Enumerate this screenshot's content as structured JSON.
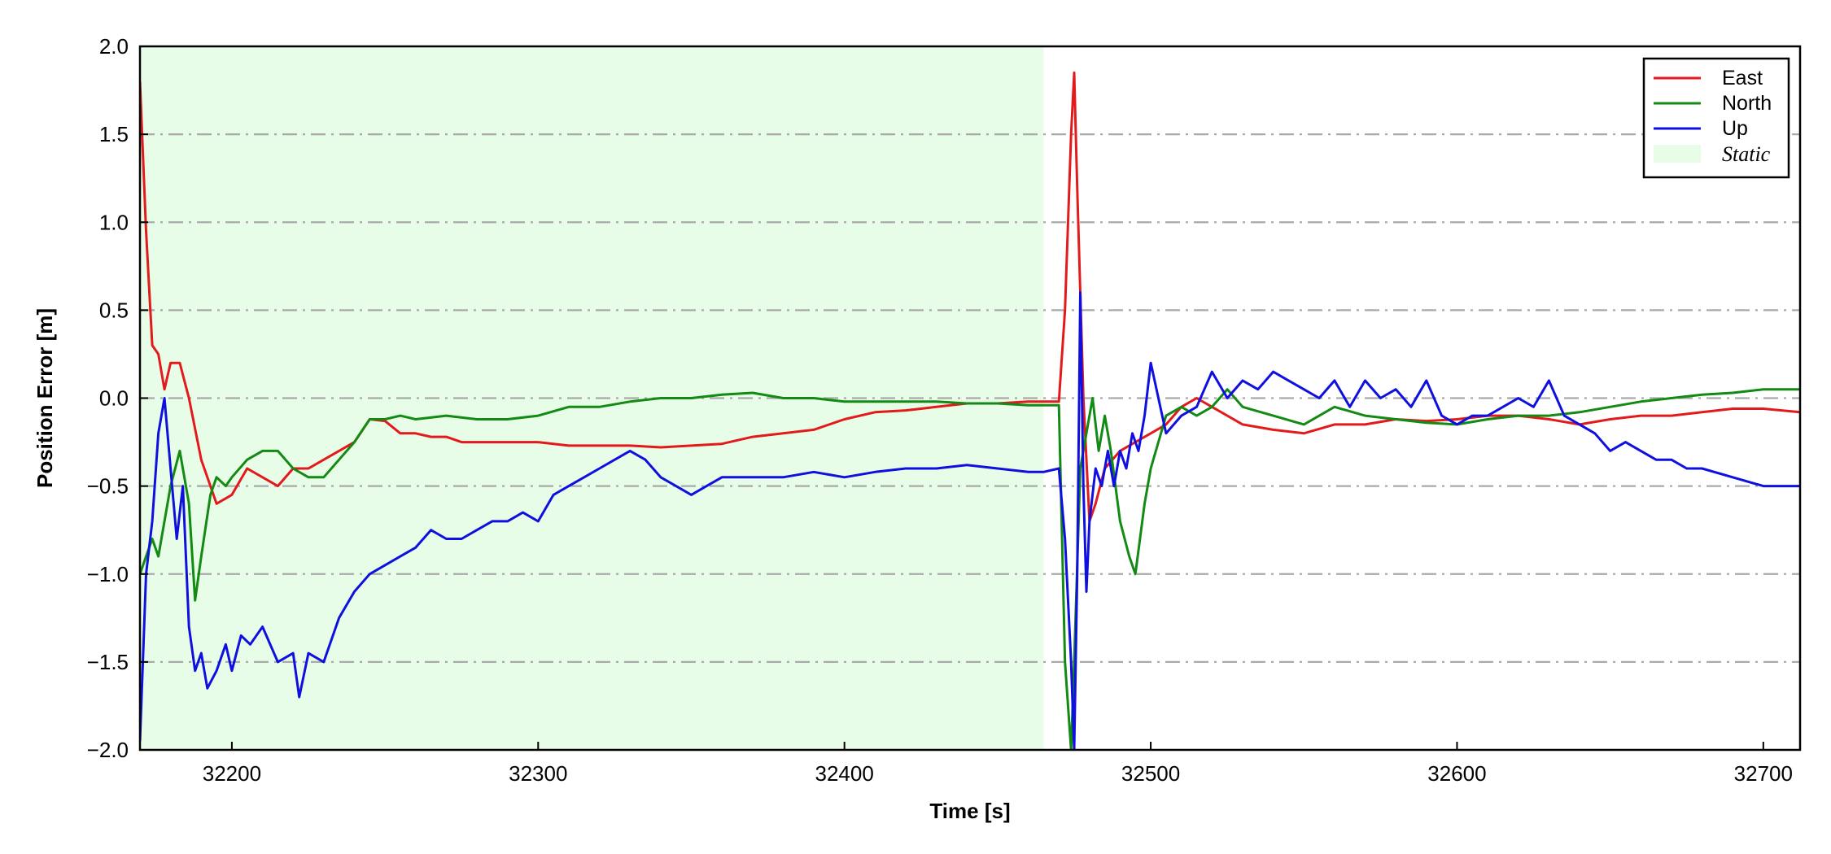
{
  "chart_data": {
    "type": "line",
    "xlabel": "Time [s]",
    "ylabel": "Position Error [m]",
    "xlim": [
      32170,
      32712
    ],
    "ylim": [
      -2.0,
      2.0
    ],
    "x_ticks": [
      32200,
      32300,
      32400,
      32500,
      32600,
      32700
    ],
    "y_ticks": [
      -2.0,
      -1.5,
      -1.0,
      -0.5,
      0.0,
      0.5,
      1.0,
      1.5,
      2.0
    ],
    "y_tick_labels": [
      "−2.0",
      "−1.5",
      "−1.0",
      "−0.5",
      "0.0",
      "0.5",
      "1.0",
      "1.5",
      "2.0"
    ],
    "grid": "horizontal dash-dot gray",
    "legend_position": "top-right",
    "static_region": {
      "label": "Static",
      "x_start": 32170,
      "x_end": 32465,
      "color": "#e8fde8"
    },
    "series": [
      {
        "name": "East",
        "color": "#e31a1c",
        "x": [
          32170,
          32172,
          32174,
          32176,
          32178,
          32180,
          32183,
          32186,
          32190,
          32195,
          32200,
          32205,
          32210,
          32215,
          32220,
          32225,
          32230,
          32235,
          32240,
          32245,
          32250,
          32255,
          32260,
          32265,
          32270,
          32275,
          32280,
          32290,
          32300,
          32310,
          32320,
          32330,
          32340,
          32350,
          32360,
          32370,
          32380,
          32390,
          32400,
          32410,
          32420,
          32430,
          32440,
          32450,
          32460,
          32465,
          32470,
          32472,
          32474,
          32475,
          32476,
          32478,
          32480,
          32482,
          32485,
          32490,
          32495,
          32500,
          32505,
          32510,
          32515,
          32520,
          32530,
          32540,
          32550,
          32560,
          32570,
          32580,
          32590,
          32600,
          32610,
          32620,
          32630,
          32640,
          32650,
          32660,
          32670,
          32680,
          32690,
          32700,
          32712
        ],
        "y": [
          1.8,
          0.95,
          0.3,
          0.25,
          0.05,
          0.2,
          0.2,
          0.0,
          -0.35,
          -0.6,
          -0.55,
          -0.4,
          -0.45,
          -0.5,
          -0.4,
          -0.4,
          -0.35,
          -0.3,
          -0.25,
          -0.12,
          -0.13,
          -0.2,
          -0.2,
          -0.22,
          -0.22,
          -0.25,
          -0.25,
          -0.25,
          -0.25,
          -0.27,
          -0.27,
          -0.27,
          -0.28,
          -0.27,
          -0.26,
          -0.22,
          -0.2,
          -0.18,
          -0.12,
          -0.08,
          -0.07,
          -0.05,
          -0.03,
          -0.03,
          -0.02,
          -0.02,
          -0.02,
          0.5,
          1.5,
          1.85,
          1.2,
          0.0,
          -0.7,
          -0.6,
          -0.4,
          -0.3,
          -0.25,
          -0.2,
          -0.15,
          -0.05,
          0.0,
          -0.05,
          -0.15,
          -0.18,
          -0.2,
          -0.15,
          -0.15,
          -0.12,
          -0.13,
          -0.12,
          -0.1,
          -0.1,
          -0.12,
          -0.15,
          -0.12,
          -0.1,
          -0.1,
          -0.08,
          -0.06,
          -0.06,
          -0.08
        ]
      },
      {
        "name": "North",
        "color": "#138a13",
        "x": [
          32170,
          32172,
          32174,
          32176,
          32178,
          32180,
          32183,
          32186,
          32188,
          32190,
          32193,
          32195,
          32198,
          32200,
          32205,
          32210,
          32215,
          32220,
          32225,
          32230,
          32235,
          32240,
          32245,
          32250,
          32255,
          32260,
          32270,
          32280,
          32290,
          32300,
          32310,
          32320,
          32330,
          32340,
          32350,
          32360,
          32370,
          32380,
          32390,
          32400,
          32410,
          32420,
          32430,
          32440,
          32450,
          32460,
          32465,
          32470,
          32472,
          32474,
          32475,
          32477,
          32479,
          32481,
          32483,
          32485,
          32487,
          32490,
          32493,
          32495,
          32498,
          32500,
          32505,
          32510,
          32515,
          32520,
          32525,
          32530,
          32540,
          32550,
          32560,
          32570,
          32580,
          32590,
          32600,
          32610,
          32620,
          32630,
          32640,
          32650,
          32660,
          32670,
          32680,
          32690,
          32700,
          32712
        ],
        "y": [
          -1.0,
          -0.9,
          -0.8,
          -0.9,
          -0.7,
          -0.5,
          -0.3,
          -0.6,
          -1.15,
          -0.9,
          -0.55,
          -0.45,
          -0.5,
          -0.45,
          -0.35,
          -0.3,
          -0.3,
          -0.4,
          -0.45,
          -0.45,
          -0.35,
          -0.25,
          -0.12,
          -0.12,
          -0.1,
          -0.12,
          -0.1,
          -0.12,
          -0.12,
          -0.1,
          -0.05,
          -0.05,
          -0.02,
          0.0,
          0.0,
          0.02,
          0.03,
          0.0,
          0.0,
          -0.02,
          -0.02,
          -0.02,
          -0.02,
          -0.03,
          -0.03,
          -0.04,
          -0.04,
          -0.04,
          -1.5,
          -2.0,
          -1.5,
          -0.4,
          -0.2,
          0.0,
          -0.3,
          -0.1,
          -0.3,
          -0.7,
          -0.9,
          -1.0,
          -0.6,
          -0.4,
          -0.1,
          -0.05,
          -0.1,
          -0.05,
          0.05,
          -0.05,
          -0.1,
          -0.15,
          -0.05,
          -0.1,
          -0.12,
          -0.14,
          -0.15,
          -0.12,
          -0.1,
          -0.1,
          -0.08,
          -0.05,
          -0.02,
          0.0,
          0.02,
          0.03,
          0.05,
          0.05
        ]
      },
      {
        "name": "Up",
        "color": "#0f10e0",
        "x": [
          32170,
          32172,
          32174,
          32176,
          32178,
          32180,
          32182,
          32184,
          32186,
          32188,
          32190,
          32192,
          32195,
          32198,
          32200,
          32203,
          32206,
          32210,
          32215,
          32220,
          32222,
          32225,
          32230,
          32235,
          32240,
          32245,
          32250,
          32255,
          32260,
          32265,
          32270,
          32275,
          32280,
          32285,
          32290,
          32295,
          32300,
          32305,
          32310,
          32315,
          32320,
          32325,
          32330,
          32335,
          32340,
          32345,
          32350,
          32355,
          32360,
          32370,
          32380,
          32390,
          32400,
          32410,
          32420,
          32430,
          32440,
          32450,
          32460,
          32465,
          32470,
          32472,
          32474,
          32475,
          32476,
          32477,
          32478,
          32479,
          32480,
          32482,
          32484,
          32486,
          32488,
          32490,
          32492,
          32494,
          32496,
          32498,
          32500,
          32505,
          32510,
          32515,
          32520,
          32525,
          32530,
          32535,
          32540,
          32545,
          32550,
          32555,
          32560,
          32565,
          32570,
          32575,
          32580,
          32585,
          32590,
          32595,
          32600,
          32605,
          32610,
          32615,
          32620,
          32625,
          32630,
          32635,
          32640,
          32645,
          32650,
          32655,
          32660,
          32665,
          32670,
          32675,
          32680,
          32690,
          32700,
          32712
        ],
        "y": [
          -1.95,
          -1.0,
          -0.7,
          -0.2,
          0.0,
          -0.4,
          -0.8,
          -0.5,
          -1.3,
          -1.55,
          -1.45,
          -1.65,
          -1.55,
          -1.4,
          -1.55,
          -1.35,
          -1.4,
          -1.3,
          -1.5,
          -1.45,
          -1.7,
          -1.45,
          -1.5,
          -1.25,
          -1.1,
          -1.0,
          -0.95,
          -0.9,
          -0.85,
          -0.75,
          -0.8,
          -0.8,
          -0.75,
          -0.7,
          -0.7,
          -0.65,
          -0.7,
          -0.55,
          -0.5,
          -0.45,
          -0.4,
          -0.35,
          -0.3,
          -0.35,
          -0.45,
          -0.5,
          -0.55,
          -0.5,
          -0.45,
          -0.45,
          -0.45,
          -0.42,
          -0.45,
          -0.42,
          -0.4,
          -0.4,
          -0.38,
          -0.4,
          -0.42,
          -0.42,
          -0.4,
          -0.8,
          -1.5,
          -2.0,
          -1.0,
          0.6,
          -0.5,
          -1.1,
          -0.7,
          -0.4,
          -0.5,
          -0.3,
          -0.5,
          -0.3,
          -0.4,
          -0.2,
          -0.3,
          -0.1,
          0.2,
          -0.2,
          -0.1,
          -0.05,
          0.15,
          0.0,
          0.1,
          0.05,
          0.15,
          0.1,
          0.05,
          0.0,
          0.1,
          -0.05,
          0.1,
          0.0,
          0.05,
          -0.05,
          0.1,
          -0.1,
          -0.15,
          -0.1,
          -0.1,
          -0.05,
          0.0,
          -0.05,
          0.1,
          -0.1,
          -0.15,
          -0.2,
          -0.3,
          -0.25,
          -0.3,
          -0.35,
          -0.35,
          -0.4,
          -0.4,
          -0.45,
          -0.5,
          -0.5
        ]
      }
    ]
  }
}
